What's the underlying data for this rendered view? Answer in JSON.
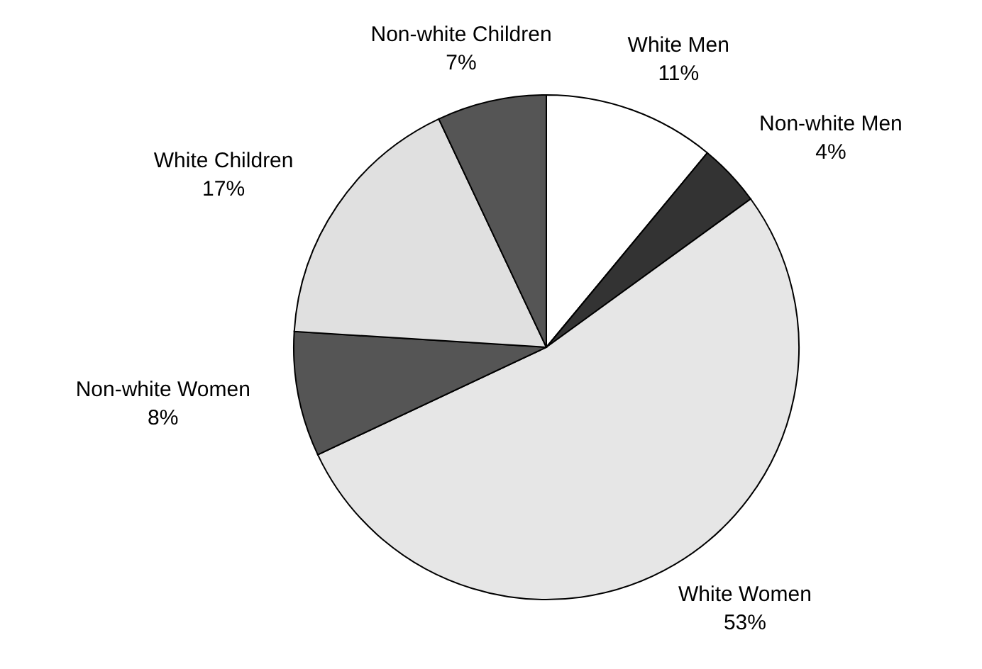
{
  "chart_data": {
    "type": "pie",
    "categories": [
      "White Men",
      "Non-white Men",
      "White Women",
      "Non-white Women",
      "White Children",
      "Non-white Children"
    ],
    "values": [
      11,
      4,
      53,
      8,
      17,
      7
    ],
    "value_labels": [
      "11%",
      "4%",
      "53%",
      "8%",
      "17%",
      "7%"
    ],
    "colors": [
      "#ffffff",
      "#333333",
      "#e6e6e6",
      "#555555",
      "#e0e0e0",
      "#555555"
    ]
  }
}
